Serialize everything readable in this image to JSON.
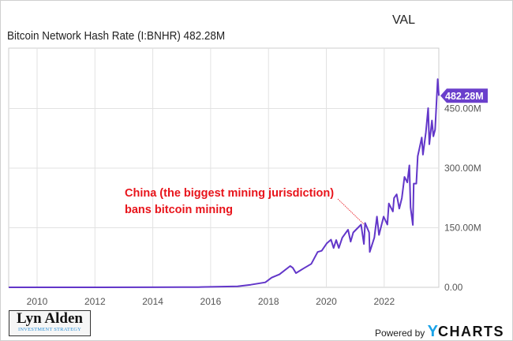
{
  "header": {
    "title": "VAL",
    "subtitle": "Bitcoin Network Hash Rate (I:BNHR)  482.28M"
  },
  "annotation": {
    "line1": "China (the biggest mining jurisdiction)",
    "line2": "bans bitcoin mining",
    "color": "#e8141b"
  },
  "branding": {
    "logo_name": "Lyn Alden",
    "logo_tagline": "INVESTMENT STRATEGY",
    "powered_by": "Powered by",
    "ycharts_y": "Y",
    "ycharts_rest": "CHARTS"
  },
  "chart_data": {
    "type": "line",
    "title": "VAL",
    "series": [
      {
        "name": "Bitcoin Network Hash Rate (I:BNHR)",
        "color": "#6236c9",
        "last_value_label": "482.28M",
        "points": [
          [
            2009.02,
            0
          ],
          [
            2012.0,
            0.01
          ],
          [
            2014.0,
            0.2
          ],
          [
            2015.0,
            0.4
          ],
          [
            2015.57,
            0.6
          ],
          [
            2016.93,
            2.6
          ],
          [
            2017.39,
            6.6
          ],
          [
            2017.89,
            12.6
          ],
          [
            2018.11,
            24.5
          ],
          [
            2018.38,
            32.5
          ],
          [
            2018.75,
            53.6
          ],
          [
            2018.84,
            49
          ],
          [
            2018.95,
            35.8
          ],
          [
            2019.2,
            47
          ],
          [
            2019.48,
            59
          ],
          [
            2019.7,
            89
          ],
          [
            2019.84,
            92
          ],
          [
            2020.02,
            111
          ],
          [
            2020.16,
            120
          ],
          [
            2020.25,
            99
          ],
          [
            2020.34,
            119
          ],
          [
            2020.43,
            99
          ],
          [
            2020.55,
            125
          ],
          [
            2020.75,
            145
          ],
          [
            2020.84,
            115
          ],
          [
            2020.93,
            138
          ],
          [
            2021.2,
            158
          ],
          [
            2021.3,
            109
          ],
          [
            2021.34,
            162
          ],
          [
            2021.48,
            138
          ],
          [
            2021.5,
            89
          ],
          [
            2021.66,
            125
          ],
          [
            2021.75,
            178
          ],
          [
            2021.82,
            132
          ],
          [
            2021.98,
            178
          ],
          [
            2022.11,
            158
          ],
          [
            2022.16,
            211
          ],
          [
            2022.3,
            191
          ],
          [
            2022.34,
            225
          ],
          [
            2022.43,
            234
          ],
          [
            2022.52,
            198
          ],
          [
            2022.61,
            225
          ],
          [
            2022.7,
            278
          ],
          [
            2022.8,
            264
          ],
          [
            2022.87,
            307
          ],
          [
            2022.91,
            201
          ],
          [
            2022.99,
            157
          ],
          [
            2023.02,
            261
          ],
          [
            2023.11,
            261
          ],
          [
            2023.16,
            330
          ],
          [
            2023.22,
            350
          ],
          [
            2023.3,
            377
          ],
          [
            2023.34,
            334
          ],
          [
            2023.44,
            390
          ],
          [
            2023.52,
            451
          ],
          [
            2023.56,
            360
          ],
          [
            2023.65,
            420
          ],
          [
            2023.7,
            380
          ],
          [
            2023.76,
            397
          ],
          [
            2023.85,
            524
          ],
          [
            2023.89,
            482.28
          ]
        ]
      }
    ],
    "x_ticks": [
      2010,
      2012,
      2014,
      2016,
      2018,
      2020,
      2022
    ],
    "y_ticks": [
      {
        "v": 0,
        "label": "0.00"
      },
      {
        "v": 150,
        "label": "150.00M"
      },
      {
        "v": 300,
        "label": "300.00M"
      },
      {
        "v": 450,
        "label": "450.00M"
      }
    ],
    "ylabel_unit": "M",
    "xlim": [
      2009.02,
      2023.89
    ],
    "ylim": [
      0,
      600
    ],
    "grid": true,
    "y_axis_side": "right"
  }
}
